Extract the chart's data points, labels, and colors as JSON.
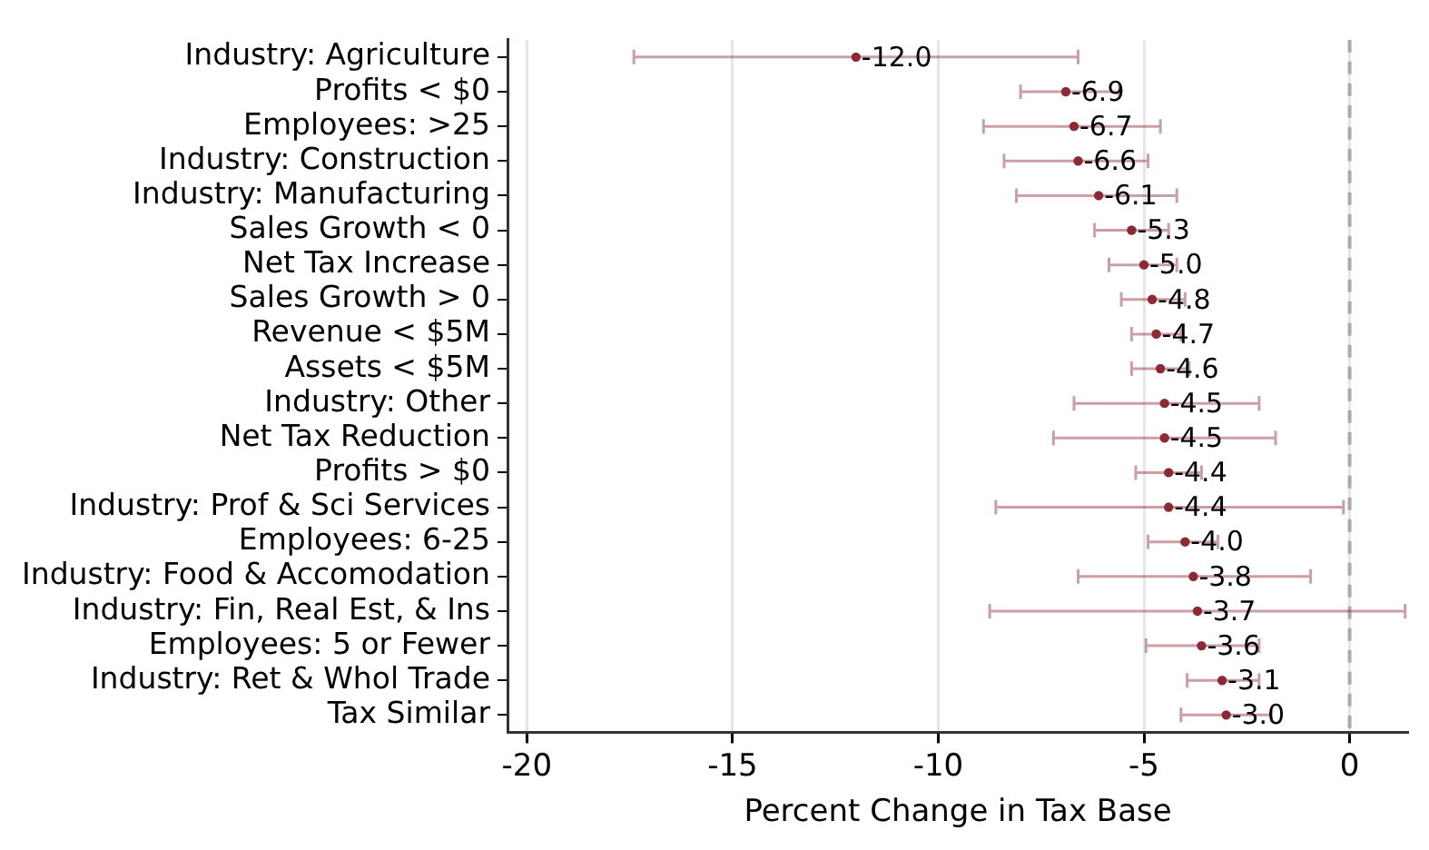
{
  "chart_data": {
    "type": "scatter",
    "orientation": "horizontal",
    "xlabel": "Percent Change in Tax Base",
    "categories": [
      "Industry: Agriculture",
      "Profits < $0",
      "Employees: >25",
      "Industry: Construction",
      "Industry: Manufacturing",
      "Sales Growth < 0",
      "Net Tax Increase",
      "Sales Growth > 0",
      "Revenue < $5M",
      "Assets < $5M",
      "Industry: Other",
      "Net Tax Reduction",
      "Profits > $0",
      "Industry: Prof & Sci Services",
      "Employees: 6-25",
      "Industry: Food & Accomodation",
      "Industry: Fin, Real Est, & Ins",
      "Employees: 5 or Fewer",
      "Industry: Ret & Whol Trade",
      "Tax Similar"
    ],
    "series": [
      {
        "color": "#8b2a35",
        "values": [
          -12.0,
          -6.9,
          -6.7,
          -6.6,
          -6.1,
          -5.3,
          -5.0,
          -4.8,
          -4.7,
          -4.6,
          -4.5,
          -4.5,
          -4.4,
          -4.4,
          -4.0,
          -3.8,
          -3.7,
          -3.6,
          -3.1,
          -3.0
        ],
        "value_labels": [
          "-12.0",
          "-6.9",
          "-6.7",
          "-6.6",
          "-6.1",
          "-5.3",
          "-5.0",
          "-4.8",
          "-4.7",
          "-4.6",
          "-4.5",
          "-4.5",
          "-4.4",
          "-4.4",
          "-4.0",
          "-3.8",
          "-3.7",
          "-3.6",
          "-3.1",
          "-3.0"
        ],
        "errors": [
          [
            -17.4,
            -6.6
          ],
          [
            -8.0,
            -5.6
          ],
          [
            -8.9,
            -4.6
          ],
          [
            -8.4,
            -4.9
          ],
          [
            -8.1,
            -4.2
          ],
          [
            -6.2,
            -4.4
          ],
          [
            -5.85,
            -4.2
          ],
          [
            -5.55,
            -4.0
          ],
          [
            -5.3,
            -4.1
          ],
          [
            -5.3,
            -3.9
          ],
          [
            -6.7,
            -2.2
          ],
          [
            -7.2,
            -1.8
          ],
          [
            -5.2,
            -3.6
          ],
          [
            -8.6,
            -0.15
          ],
          [
            -4.9,
            -3.2
          ],
          [
            -6.6,
            -0.95
          ],
          [
            -8.75,
            1.35
          ],
          [
            -4.95,
            -2.2
          ],
          [
            -3.95,
            -2.2
          ],
          [
            -4.1,
            -1.9
          ]
        ]
      }
    ],
    "xlim": [
      -20.45,
      1.4
    ],
    "xticks": [
      -20,
      -15,
      -10,
      -5,
      0
    ],
    "grid": "x",
    "marker": "circle",
    "legend": false,
    "ref_lines": [
      {
        "axis": "x",
        "value": 0,
        "color": "#aaaaaa",
        "line_style": "dashed"
      }
    ]
  }
}
